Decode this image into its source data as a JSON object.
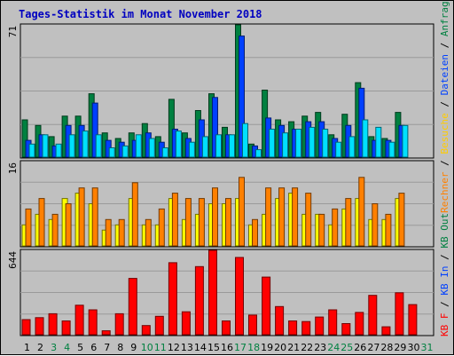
{
  "chart_data": {
    "type": "bar",
    "title": "Tages-Statistik im Monat November 2018",
    "categories": [
      "1",
      "2",
      "3",
      "4",
      "5",
      "6",
      "7",
      "8",
      "9",
      "10",
      "11",
      "12",
      "13",
      "14",
      "15",
      "16",
      "17",
      "18",
      "19",
      "20",
      "21",
      "22",
      "23",
      "24",
      "25",
      "26",
      "27",
      "28",
      "29",
      "30",
      "31"
    ],
    "weekend_days": [
      "3",
      "4",
      "10",
      "11",
      "17",
      "18",
      "24",
      "25",
      "31"
    ],
    "day_label_colors": {
      "weekday": "#000000",
      "weekend": "#008040"
    },
    "panels": [
      {
        "name": "hits-files-pages-visits",
        "ymax_label": "71",
        "ylim": [
          0,
          71
        ],
        "series": [
          {
            "key": "Anfragen",
            "color": "#008040",
            "values": [
              20,
              17,
              11,
              22,
              22,
              34,
              13,
              10,
              13,
              18,
              11,
              31,
              13,
              25,
              34,
              16,
              71,
              7,
              36,
              20,
              19,
              22,
              24,
              12,
              23,
              40,
              11,
              10,
              24,
              null,
              null
            ]
          },
          {
            "key": "Dateien",
            "color": "#0040ff",
            "values": [
              9,
              12,
              6,
              17,
              17,
              29,
              9,
              8,
              9,
              13,
              8,
              15,
              10,
              20,
              32,
              12,
              65,
              6,
              21,
              17,
              15,
              19,
              19,
              10,
              17,
              37,
              9,
              9,
              17,
              null,
              null
            ]
          },
          {
            "key": "Seiten",
            "color": "#00e0ff",
            "values": [
              7,
              12,
              7,
              12,
              14,
              12,
              5,
              6,
              12,
              10,
              5,
              14,
              8,
              11,
              12,
              12,
              18,
              4,
              15,
              13,
              15,
              16,
              15,
              8,
              11,
              20,
              16,
              8,
              17,
              null,
              null
            ]
          }
        ]
      },
      {
        "name": "visits-sites",
        "ymax_label": "16",
        "ylim": [
          0,
          16
        ],
        "series": [
          {
            "key": "Besuche",
            "color": "#ffff00",
            "values": [
              4,
              6,
              5,
              9,
              10,
              8,
              3,
              4,
              9,
              4,
              4,
              9,
              5,
              6,
              8,
              8,
              9,
              4,
              6,
              9,
              10,
              6,
              6,
              4,
              7,
              9,
              5,
              5,
              9,
              null,
              null
            ]
          },
          {
            "key": "Rechner",
            "color": "#ff8000",
            "values": [
              7,
              9,
              6,
              8,
              11,
              11,
              5,
              5,
              12,
              5,
              7,
              10,
              9,
              9,
              11,
              9,
              13,
              5,
              11,
              11,
              11,
              10,
              6,
              7,
              9,
              13,
              8,
              6,
              10,
              null,
              null
            ]
          }
        ]
      },
      {
        "name": "kbytes",
        "ymax_label": "644",
        "ylim": [
          0,
          644
        ],
        "series": [
          {
            "key": "KBytes",
            "color": "#ff0000",
            "values": [
              115,
              130,
              160,
              105,
              225,
              190,
              30,
              160,
              430,
              70,
              140,
              550,
              175,
              520,
              644,
              105,
              590,
              150,
              440,
              215,
              105,
              100,
              135,
              190,
              85,
              170,
              300,
              60,
              320,
              230,
              null
            ]
          }
        ]
      }
    ],
    "legend": {
      "text": "KB F / KB In / KB Out Rechner / Besuche / Dateien / Anfragen",
      "segments": [
        {
          "text": "KB F",
          "color": "#ff0000"
        },
        {
          "text": " / ",
          "color": "#000000"
        },
        {
          "text": "KB In",
          "color": "#0040ff"
        },
        {
          "text": " / ",
          "color": "#000000"
        },
        {
          "text": "KB Out",
          "color": "#008040"
        },
        {
          "text": "Rechner",
          "color": "#ff8000"
        },
        {
          "text": " / ",
          "color": "#000000"
        },
        {
          "text": "Besuche",
          "color": "#ffcc00"
        },
        {
          "text": " / ",
          "color": "#000000"
        },
        {
          "text": "Dateien",
          "color": "#0040ff"
        },
        {
          "text": " / ",
          "color": "#000000"
        },
        {
          "text": "Anfragen",
          "color": "#008040"
        }
      ]
    },
    "grid": true
  }
}
